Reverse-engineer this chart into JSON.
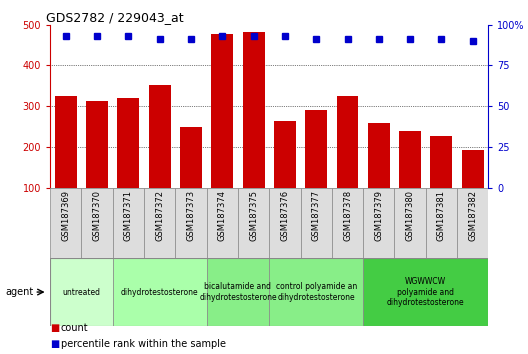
{
  "title": "GDS2782 / 229043_at",
  "categories": [
    "GSM187369",
    "GSM187370",
    "GSM187371",
    "GSM187372",
    "GSM187373",
    "GSM187374",
    "GSM187375",
    "GSM187376",
    "GSM187377",
    "GSM187378",
    "GSM187379",
    "GSM187380",
    "GSM187381",
    "GSM187382"
  ],
  "bar_values": [
    325,
    312,
    320,
    352,
    248,
    478,
    483,
    263,
    290,
    325,
    258,
    240,
    228,
    193
  ],
  "percentile_values": [
    93,
    93,
    93,
    91,
    91,
    93,
    93,
    93,
    91,
    91,
    91,
    91,
    91,
    90
  ],
  "bar_color": "#cc0000",
  "dot_color": "#0000cc",
  "ylim_left": [
    100,
    500
  ],
  "ylim_right": [
    0,
    100
  ],
  "yticks_left": [
    100,
    200,
    300,
    400,
    500
  ],
  "yticks_right": [
    0,
    25,
    50,
    75,
    100
  ],
  "ytick_labels_right": [
    "0",
    "25",
    "50",
    "75",
    "100%"
  ],
  "grid_lines": [
    200,
    300,
    400
  ],
  "groups": [
    {
      "label": "untreated",
      "start": 0,
      "end": 1,
      "color": "#ccffcc"
    },
    {
      "label": "dihydrotestosterone",
      "start": 2,
      "end": 4,
      "color": "#aaffaa"
    },
    {
      "label": "bicalutamide and\ndihydrotestosterone",
      "start": 5,
      "end": 6,
      "color": "#88ee88"
    },
    {
      "label": "control polyamide an\ndihydrotestosterone",
      "start": 7,
      "end": 9,
      "color": "#88ee88"
    },
    {
      "label": "WGWWCW\npolyamide and\ndihydrotestosterone",
      "start": 10,
      "end": 13,
      "color": "#44cc44"
    }
  ],
  "left_axis_color": "#cc0000",
  "right_axis_color": "#0000cc",
  "tick_bg_color": "#dddddd",
  "tick_border_color": "#888888",
  "legend_count_color": "#cc0000",
  "legend_percentile_color": "#0000cc",
  "agent_label": "agent"
}
